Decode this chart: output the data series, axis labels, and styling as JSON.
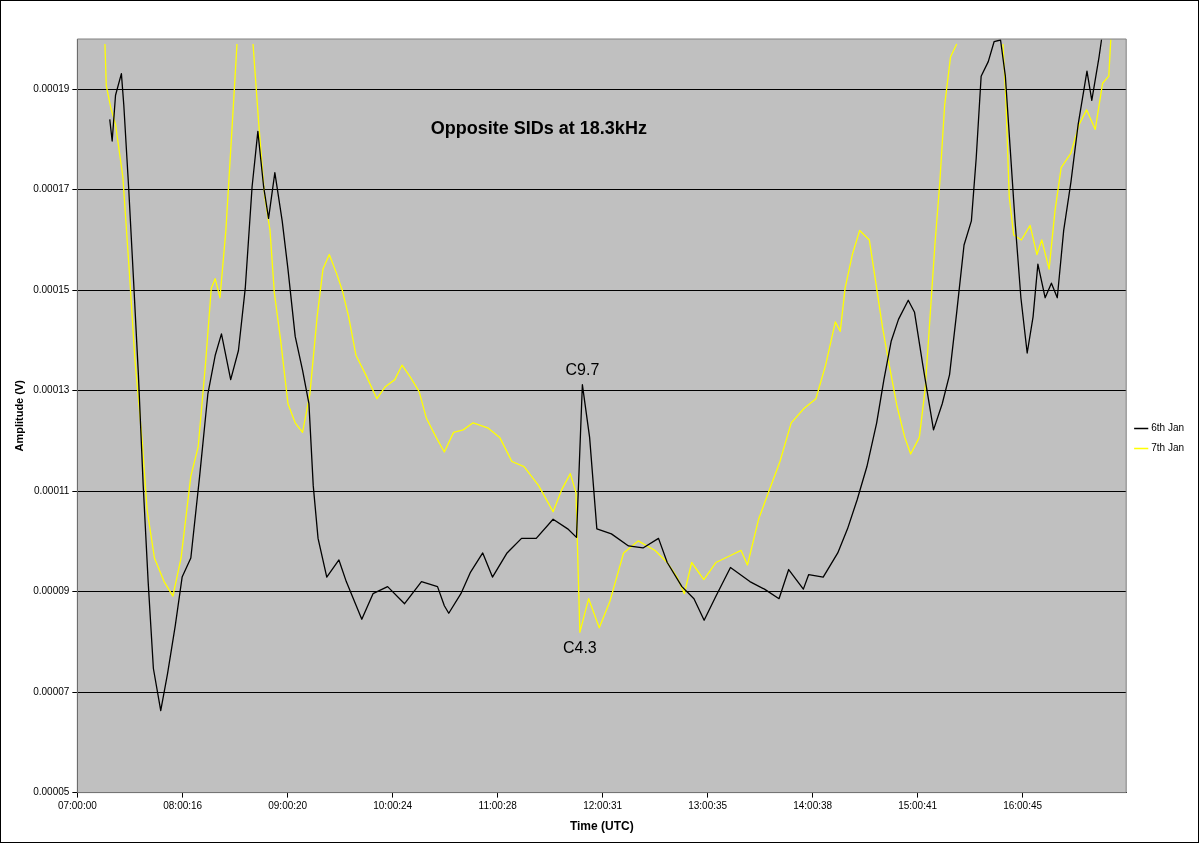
{
  "chart_data": {
    "type": "line",
    "title": "Opposite SIDs at 18.3kHz",
    "xlabel": "Time (UTC)",
    "ylabel": "Amplitude (V)",
    "xlim": [
      7,
      17
    ],
    "ylim": [
      5e-05,
      0.0002
    ],
    "xticks": [
      {
        "value": 7,
        "label": "07:00:00"
      },
      {
        "value": 8.00444,
        "label": "08:00:16"
      },
      {
        "value": 9.00556,
        "label": "09:00:20"
      },
      {
        "value": 10.00667,
        "label": "10:00:24"
      },
      {
        "value": 11.00778,
        "label": "11:00:28"
      },
      {
        "value": 12.00861,
        "label": "12:00:31"
      },
      {
        "value": 13.00972,
        "label": "13:00:35"
      },
      {
        "value": 14.01056,
        "label": "14:00:38"
      },
      {
        "value": 15.01139,
        "label": "15:00:41"
      },
      {
        "value": 16.0125,
        "label": "16:00:45"
      }
    ],
    "yticks": [
      {
        "value": 5e-05,
        "label": "0.00005"
      },
      {
        "value": 7e-05,
        "label": "0.00007"
      },
      {
        "value": 9e-05,
        "label": "0.00009"
      },
      0.00011,
      0.00013,
      0.00015,
      0.00017,
      0.00019
    ],
    "grid": "y",
    "legend": "right",
    "marker": "none",
    "line_style": "solid",
    "annotations": [
      {
        "text": "C9.7",
        "x": 11.815,
        "y": 0.0001312
      },
      {
        "text": "C4.3",
        "x": 11.791,
        "y": 8.19e-05
      }
    ],
    "series": [
      {
        "name": "6th Jan",
        "color": "#000000",
        "x": [
          7.309,
          7.332,
          7.364,
          7.42,
          7.443,
          7.489,
          7.535,
          7.582,
          7.628,
          7.675,
          7.725,
          7.795,
          7.86,
          7.934,
          7.999,
          8.082,
          8.166,
          8.244,
          8.314,
          8.374,
          8.462,
          8.536,
          8.601,
          8.666,
          8.721,
          8.776,
          8.823,
          8.883,
          8.953,
          9.008,
          9.077,
          9.147,
          9.208,
          9.249,
          9.295,
          9.378,
          9.494,
          9.564,
          9.712,
          9.819,
          9.958,
          10.12,
          10.281,
          10.434,
          10.499,
          10.541,
          10.657,
          10.749,
          10.865,
          10.958,
          11.097,
          11.235,
          11.375,
          11.536,
          11.675,
          11.759,
          11.815,
          11.884,
          11.953,
          12.092,
          12.255,
          12.393,
          12.541,
          12.624,
          12.764,
          12.879,
          12.976,
          13.088,
          13.227,
          13.412,
          13.551,
          13.69,
          13.782,
          13.922,
          13.973,
          14.111,
          14.25,
          14.343,
          14.435,
          14.528,
          14.621,
          14.69,
          14.76,
          14.829,
          14.922,
          14.982,
          15.061,
          15.163,
          15.246,
          15.316,
          15.384,
          15.454,
          15.524,
          15.57,
          15.617,
          15.685,
          15.741,
          15.802,
          15.848,
          15.894,
          15.94,
          15.996,
          16.056,
          16.112,
          16.158,
          16.227,
          16.287,
          16.343,
          16.404,
          16.473,
          16.542,
          16.626,
          16.672,
          16.741,
          16.765
        ],
        "values": [
          0.000184,
          0.0001797,
          0.0001888,
          0.0001931,
          0.0001868,
          0.0001705,
          0.0001523,
          0.0001332,
          0.0001111,
          9.2e-05,
          7.47e-05,
          6.63e-05,
          7.37e-05,
          8.33e-05,
          9.29e-05,
          9.67e-05,
          0.000113,
          0.0001293,
          0.000137,
          0.0001413,
          0.0001322,
          0.000138,
          0.0001504,
          0.0001706,
          0.0001816,
          0.0001706,
          0.0001643,
          0.0001734,
          0.0001638,
          0.0001542,
          0.0001408,
          0.0001341,
          0.0001274,
          0.0001111,
          0.0001006,
          9.29e-05,
          9.63e-05,
          9.2e-05,
          8.45e-05,
          8.96e-05,
          9.1e-05,
          8.76e-05,
          9.2e-05,
          9.1e-05,
          8.72e-05,
          8.57e-05,
          8.96e-05,
          9.39e-05,
          9.77e-05,
          9.29e-05,
          9.77e-05,
          0.0001006,
          0.0001006,
          0.0001044,
          0.0001025,
          0.0001008,
          0.0001312,
          0.0001207,
          0.0001025,
          0.0001015,
          9.91e-05,
          9.87e-05,
          0.0001006,
          9.58e-05,
          9.1e-05,
          8.86e-05,
          8.43e-05,
          8.91e-05,
          9.48e-05,
          9.2e-05,
          9.05e-05,
          8.86e-05,
          9.44e-05,
          9.05e-05,
          9.34e-05,
          9.29e-05,
          9.77e-05,
          0.0001025,
          0.0001083,
          0.0001149,
          0.0001236,
          0.0001322,
          0.0001399,
          0.0001442,
          0.000148,
          0.0001456,
          0.0001351,
          0.0001222,
          0.0001274,
          0.0001332,
          0.0001456,
          0.000159,
          0.0001638,
          0.0001763,
          0.0001926,
          0.0001955,
          0.0001995,
          0.0001998,
          0.0001926,
          0.0001782,
          0.0001638,
          0.0001485,
          0.0001375,
          0.0001447,
          0.0001552,
          0.0001485,
          0.0001514,
          0.0001485,
          0.0001619,
          0.0001715,
          0.000183,
          0.0001936,
          0.0001878,
          0.0001964,
          0.0001999
        ]
      },
      {
        "name": "7th Jan",
        "color": "#ffff00",
        "x": [
          7.263,
          7.276,
          7.318,
          7.364,
          7.434,
          7.494,
          7.549,
          7.619,
          7.665,
          7.735,
          7.827,
          7.911,
          7.989,
          8.082,
          8.152,
          8.221,
          8.277,
          8.314,
          8.36,
          8.416,
          8.477,
          8.522,
          8.6,
          8.675,
          8.73,
          8.786,
          8.837,
          8.878,
          8.939,
          9.008,
          9.077,
          9.147,
          9.217,
          9.286,
          9.342,
          9.402,
          9.472,
          9.527,
          9.587,
          9.657,
          9.749,
          9.856,
          9.936,
          10.027,
          10.096,
          10.175,
          10.259,
          10.328,
          10.421,
          10.499,
          10.587,
          10.679,
          10.773,
          10.912,
          11.027,
          11.143,
          11.259,
          11.398,
          11.536,
          11.616,
          11.7,
          11.754,
          11.791,
          11.875,
          11.976,
          12.078,
          12.208,
          12.347,
          12.509,
          12.624,
          12.718,
          12.787,
          12.857,
          12.973,
          13.088,
          13.227,
          13.328,
          13.389,
          13.495,
          13.597,
          13.699,
          13.806,
          13.93,
          14.042,
          14.134,
          14.227,
          14.274,
          14.32,
          14.389,
          14.459,
          14.551,
          14.607,
          14.676,
          14.741,
          14.815,
          14.889,
          14.945,
          15.028,
          15.083,
          15.13,
          15.176,
          15.223,
          15.269,
          15.325,
          15.384,
          15.6,
          15.825,
          15.853,
          15.885,
          15.927,
          16.001,
          16.084,
          16.149,
          16.195,
          16.265,
          16.321,
          16.38,
          16.473,
          16.552,
          16.622,
          16.705,
          16.775,
          16.834,
          16.853
        ],
        "values": [
          0.000199,
          0.0001907,
          0.0001864,
          0.000183,
          0.0001725,
          0.0001542,
          0.0001361,
          0.0001198,
          0.0001063,
          9.67e-05,
          9.2e-05,
          8.91e-05,
          9.67e-05,
          0.000113,
          0.0001188,
          0.0001351,
          0.0001504,
          0.0001523,
          0.0001485,
          0.0001619,
          0.000183,
          0.000199,
          null,
          0.000199,
          0.000183,
          0.0001686,
          0.0001619,
          0.0001495,
          0.0001399,
          0.0001274,
          0.0001236,
          0.0001217,
          0.0001293,
          0.0001447,
          0.0001542,
          0.0001571,
          0.0001533,
          0.0001499,
          0.0001447,
          0.000137,
          0.0001332,
          0.0001284,
          0.0001308,
          0.0001322,
          0.0001351,
          0.0001327,
          0.0001298,
          0.0001245,
          0.0001207,
          0.0001178,
          0.0001217,
          0.0001222,
          0.0001236,
          0.0001226,
          0.0001207,
          0.0001159,
          0.0001149,
          0.0001111,
          0.0001059,
          0.0001102,
          0.0001135,
          0.0001097,
          8.19e-05,
          8.86e-05,
          8.28e-05,
          8.81e-05,
          9.77e-05,
          0.0001001,
          9.82e-05,
          9.58e-05,
          9.29e-05,
          8.96e-05,
          9.58e-05,
          9.24e-05,
          9.58e-05,
          9.72e-05,
          9.82e-05,
          9.53e-05,
          0.0001044,
          0.0001102,
          0.0001159,
          0.0001236,
          0.0001265,
          0.0001284,
          0.0001351,
          0.0001437,
          0.0001418,
          0.0001504,
          0.0001571,
          0.0001619,
          0.00016,
          0.0001523,
          0.0001427,
          0.0001351,
          0.0001269,
          0.0001207,
          0.0001174,
          0.0001207,
          0.0001303,
          0.0001447,
          0.000159,
          0.0001715,
          0.0001868,
          0.0001964,
          0.000199,
          null,
          0.000199,
          0.0001878,
          0.0001686,
          0.000161,
          0.00016,
          0.0001629,
          0.0001571,
          0.00016,
          0.0001542,
          0.0001658,
          0.0001744,
          0.0001773,
          0.000183,
          0.0001859,
          0.000182,
          0.0001912,
          0.0001926,
          0.0001999
        ]
      }
    ]
  }
}
